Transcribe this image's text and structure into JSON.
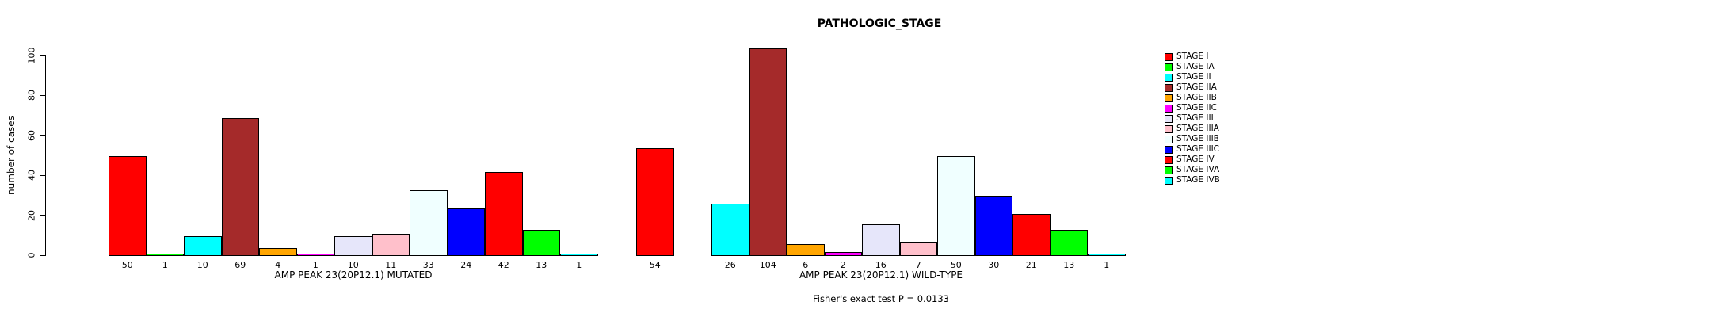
{
  "title": "PATHOLOGIC_STAGE",
  "y_axis": {
    "label": "number of cases",
    "ticks": [
      0,
      20,
      40,
      60,
      80,
      100
    ]
  },
  "footer": "Fisher's exact test P = 0.0133",
  "chart_data": {
    "type": "bar",
    "title": "PATHOLOGIC_STAGE",
    "ylabel": "number of cases",
    "ylim": [
      0,
      100
    ],
    "yticks": [
      0,
      20,
      40,
      60,
      80,
      100
    ],
    "grid": false,
    "legend_position": "right",
    "categories": [
      "STAGE I",
      "STAGE IA",
      "STAGE II",
      "STAGE IIA",
      "STAGE IIB",
      "STAGE IIC",
      "STAGE III",
      "STAGE IIIA",
      "STAGE IIIB",
      "STAGE IIIC",
      "STAGE IV",
      "STAGE IVA",
      "STAGE IVB"
    ],
    "colors": [
      "#FF0000",
      "#00FF00",
      "#00FFFF",
      "#A52A2A",
      "#FFA500",
      "#FF00FF",
      "#E6E6FA",
      "#FFC0CB",
      "#F0FFFF",
      "#0000FF",
      "#FF0000",
      "#00FF00",
      "#00FFFF"
    ],
    "series": [
      {
        "name": "AMP PEAK 23(20P12.1) MUTATED",
        "values": [
          50,
          1,
          10,
          69,
          4,
          1,
          10,
          11,
          33,
          24,
          42,
          13,
          1
        ]
      },
      {
        "name": "AMP PEAK 23(20P12.1) WILD-TYPE",
        "values": [
          54,
          0,
          26,
          104,
          6,
          2,
          16,
          7,
          50,
          30,
          21,
          13,
          1
        ]
      }
    ],
    "bar_value_labels": "below_axis",
    "zero_bars_unlabeled": true,
    "annotation": "Fisher's exact test P = 0.0133"
  }
}
